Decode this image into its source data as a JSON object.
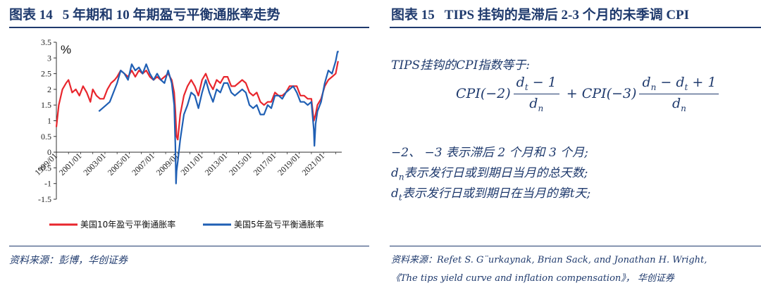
{
  "left_panel": {
    "title_num": "图表 14",
    "title_text": "5 年期和 10 年期盈亏平衡通胀率走势",
    "source": "资料来源：彭博，华创证券",
    "chart_data": {
      "type": "line",
      "ylabel": "%",
      "ylim": [
        -1.5,
        3.5
      ],
      "yticks": [
        "3.5",
        "3",
        "2.5",
        "2",
        "1.5",
        "1",
        "0.5",
        "0",
        "-0.5",
        "-1",
        "-1.5"
      ],
      "xlim": [
        1999.0,
        2022.5
      ],
      "xticks": [
        "1999/01",
        "2001/01",
        "2003/01",
        "2005/01",
        "2007/01",
        "2009/01",
        "2011/01",
        "2013/01",
        "2015/01",
        "2017/01",
        "2019/01",
        "2021/01"
      ],
      "legend_position": "bottom",
      "series": [
        {
          "name": "美国10年盈亏平衡通胀率",
          "color": "#e8262d",
          "x": [
            1999.0,
            1999.2,
            1999.5,
            1999.8,
            2000.0,
            2000.3,
            2000.6,
            2000.9,
            2001.2,
            2001.5,
            2001.8,
            2002.0,
            2002.3,
            2002.6,
            2002.9,
            2003.2,
            2003.5,
            2003.8,
            2004.0,
            2004.3,
            2004.6,
            2004.9,
            2005.2,
            2005.5,
            2005.8,
            2006.1,
            2006.4,
            2006.7,
            2007.0,
            2007.3,
            2007.6,
            2007.9,
            2008.2,
            2008.5,
            2008.7,
            2008.8,
            2008.9,
            2009.0,
            2009.2,
            2009.5,
            2009.8,
            2010.1,
            2010.4,
            2010.7,
            2011.0,
            2011.3,
            2011.6,
            2011.9,
            2012.2,
            2012.5,
            2012.8,
            2013.1,
            2013.4,
            2013.7,
            2014.0,
            2014.3,
            2014.6,
            2014.9,
            2015.2,
            2015.5,
            2015.8,
            2016.1,
            2016.4,
            2016.7,
            2017.0,
            2017.3,
            2017.6,
            2017.9,
            2018.2,
            2018.5,
            2018.8,
            2019.1,
            2019.4,
            2019.7,
            2020.0,
            2020.2,
            2020.35,
            2020.5,
            2020.8,
            2021.1,
            2021.4,
            2021.7,
            2022.0,
            2022.2
          ],
          "values": [
            0.8,
            1.5,
            2.0,
            2.2,
            2.3,
            1.9,
            2.0,
            1.8,
            2.1,
            1.9,
            1.6,
            2.0,
            1.8,
            1.7,
            1.7,
            2.0,
            2.2,
            2.3,
            2.4,
            2.6,
            2.5,
            2.4,
            2.6,
            2.4,
            2.6,
            2.5,
            2.6,
            2.4,
            2.3,
            2.4,
            2.3,
            2.4,
            2.5,
            2.3,
            1.9,
            1.3,
            0.5,
            0.4,
            1.2,
            1.8,
            2.1,
            2.3,
            2.1,
            1.8,
            2.3,
            2.5,
            2.2,
            2.0,
            2.3,
            2.2,
            2.4,
            2.4,
            2.1,
            2.1,
            2.2,
            2.3,
            2.2,
            1.9,
            1.8,
            1.9,
            1.6,
            1.5,
            1.6,
            1.6,
            1.9,
            1.8,
            1.8,
            1.9,
            2.1,
            2.1,
            2.1,
            1.8,
            1.8,
            1.7,
            1.7,
            1.0,
            1.2,
            1.5,
            1.7,
            2.1,
            2.3,
            2.4,
            2.5,
            2.9
          ]
        },
        {
          "name": "美国5年盈亏平衡通胀率",
          "color": "#1f5fb4",
          "x": [
            2002.5,
            2002.8,
            2003.1,
            2003.4,
            2003.7,
            2004.0,
            2004.3,
            2004.6,
            2004.9,
            2005.2,
            2005.5,
            2005.8,
            2006.1,
            2006.4,
            2006.7,
            2007.0,
            2007.3,
            2007.6,
            2007.9,
            2008.2,
            2008.5,
            2008.7,
            2008.8,
            2008.85,
            2008.9,
            2009.0,
            2009.2,
            2009.5,
            2009.8,
            2010.1,
            2010.4,
            2010.7,
            2011.0,
            2011.3,
            2011.6,
            2011.9,
            2012.2,
            2012.5,
            2012.8,
            2013.1,
            2013.4,
            2013.7,
            2014.0,
            2014.3,
            2014.6,
            2014.9,
            2015.2,
            2015.5,
            2015.8,
            2016.1,
            2016.4,
            2016.7,
            2017.0,
            2017.3,
            2017.6,
            2017.9,
            2018.2,
            2018.5,
            2018.8,
            2019.1,
            2019.4,
            2019.7,
            2020.0,
            2020.2,
            2020.25,
            2020.35,
            2020.5,
            2020.8,
            2021.1,
            2021.4,
            2021.7,
            2022.0,
            2022.15,
            2022.25
          ],
          "values": [
            1.3,
            1.4,
            1.5,
            1.6,
            1.9,
            2.2,
            2.6,
            2.5,
            2.3,
            2.8,
            2.6,
            2.7,
            2.5,
            2.8,
            2.5,
            2.3,
            2.5,
            2.3,
            2.2,
            2.6,
            2.2,
            1.5,
            0.2,
            -1.0,
            -0.6,
            -0.3,
            0.4,
            1.2,
            1.5,
            1.9,
            1.8,
            1.4,
            1.9,
            2.3,
            1.9,
            1.6,
            2.0,
            1.9,
            2.2,
            2.2,
            1.9,
            1.8,
            1.9,
            2.0,
            1.9,
            1.5,
            1.4,
            1.5,
            1.2,
            1.2,
            1.5,
            1.4,
            1.8,
            1.8,
            1.7,
            1.9,
            2.0,
            2.1,
            1.9,
            1.6,
            1.6,
            1.5,
            1.6,
            0.7,
            0.2,
            0.9,
            1.3,
            1.6,
            2.2,
            2.6,
            2.5,
            2.9,
            3.2,
            3.2
          ]
        }
      ]
    }
  },
  "right_panel": {
    "title_num": "图表 15",
    "title_text": "TIPS 挂钩的是滞后 2-3 个月的未季调 CPI",
    "formula_intro": "TIPS挂钩的CPI指数等于:",
    "formula": {
      "term1_coef": "CPI(−2)",
      "term1_num_d": "d",
      "term1_num_sub": "t",
      "term1_num_rest": " − 1",
      "term1_den_d": "d",
      "term1_den_sub": "n",
      "plus": " + ",
      "term2_coef": "CPI(−3)",
      "term2_num_d1": "d",
      "term2_num_sub1": "n",
      "term2_num_mid": " − ",
      "term2_num_d2": "d",
      "term2_num_sub2": "t",
      "term2_num_rest": " + 1",
      "term2_den_d": "d",
      "term2_den_sub": "n"
    },
    "note1": "−2、 −3 表示滞后 2 个月和 3 个月;",
    "note2_d": "d",
    "note2_sub": "n",
    "note2_text": "表示发行日或到期日当月的总天数;",
    "note3_d": "d",
    "note3_sub": "t",
    "note3_text": "表示发行日或到期日在当月的第t天;",
    "source_line1": "资料来源：Refet S. G¨urkaynak, Brian Sack, and Jonathan H. Wright,",
    "source_line2": "《The tips yield curve and inflation compensation》， 华创证券"
  }
}
